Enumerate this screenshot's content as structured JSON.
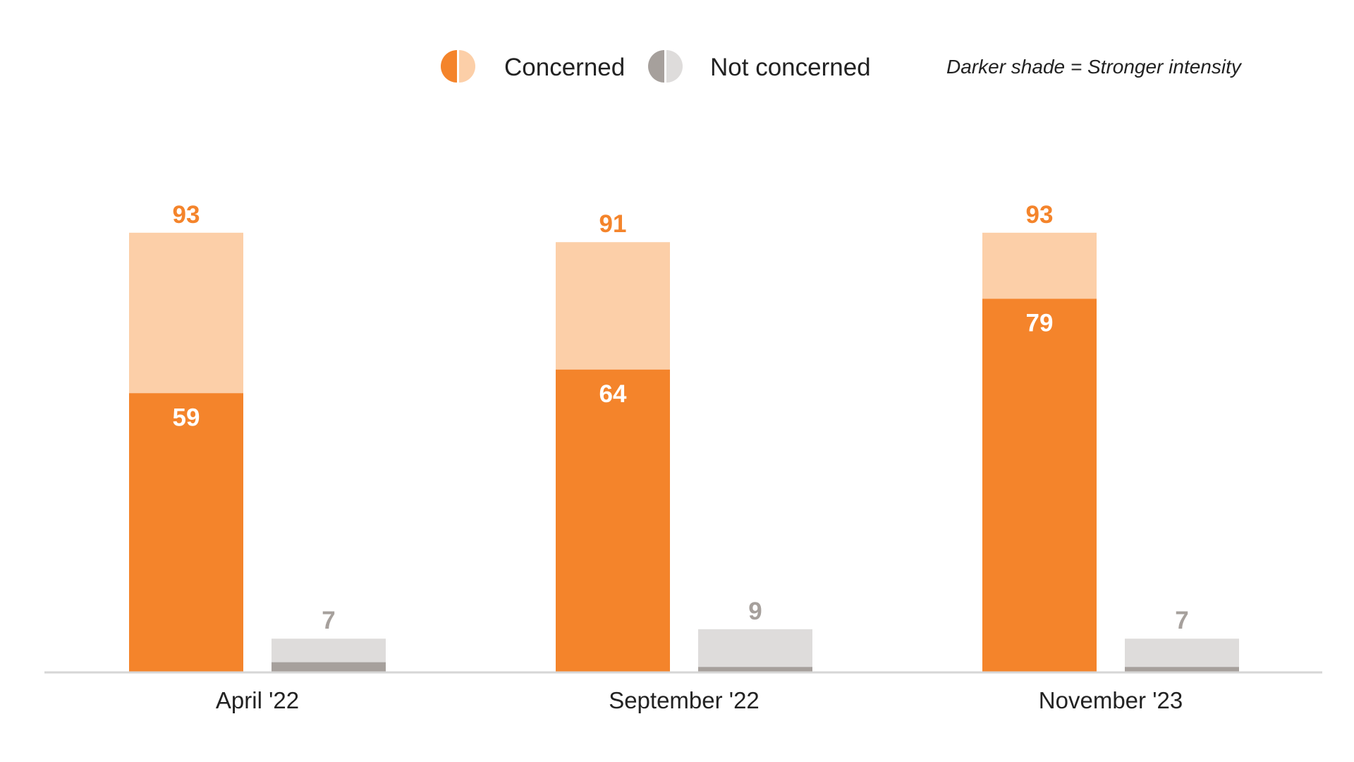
{
  "chart_data": {
    "type": "bar",
    "categories": [
      "April '22",
      "September '22",
      "November '23"
    ],
    "series": [
      {
        "name": "Concerned",
        "total": [
          93,
          91,
          93
        ],
        "strong": [
          59,
          64,
          79
        ],
        "colors": {
          "strong": "#F4842B",
          "weak": "#FCCFA8",
          "total_label": "#F4842B",
          "strong_label": "#FFFFFF"
        }
      },
      {
        "name": "Not concerned",
        "total": [
          7,
          9,
          7
        ],
        "strong": [
          2,
          1,
          1
        ],
        "colors": {
          "strong": "#A6A09C",
          "weak": "#DEDCDB",
          "total_label": "#A6A09C"
        }
      }
    ],
    "ylim": [
      0,
      100
    ],
    "legend": {
      "placement": "top",
      "note": "Darker shade = Stronger intensity"
    },
    "axis_color": "#D6D6D6"
  }
}
